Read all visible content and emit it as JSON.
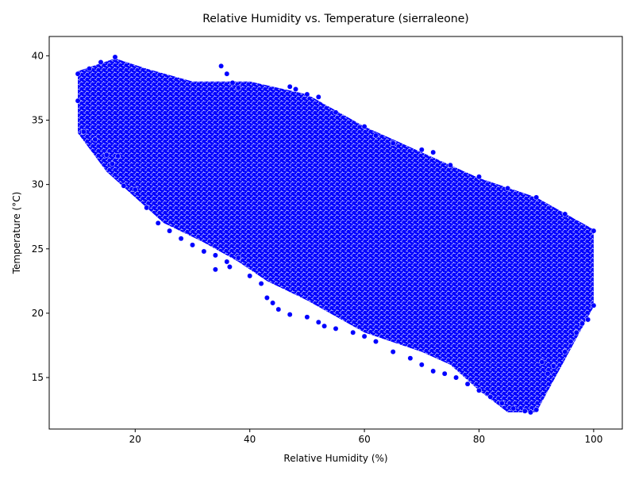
{
  "chart_data": {
    "type": "scatter",
    "title": "Relative Humidity vs. Temperature (sierraleone)",
    "xlabel": "Relative Humidity (%)",
    "ylabel": "Temperature (°C)",
    "xlim": [
      5,
      105
    ],
    "ylim": [
      11,
      41.5
    ],
    "xticks": [
      20,
      40,
      60,
      80,
      100
    ],
    "yticks": [
      15,
      20,
      25,
      30,
      35,
      40
    ],
    "grid": false,
    "legend": "none",
    "marker_color": "#0000ff",
    "marker_edge": "#ffffff",
    "cloud_outline": [
      [
        10,
        38.8
      ],
      [
        16.5,
        39.8
      ],
      [
        22,
        39
      ],
      [
        30,
        38
      ],
      [
        40,
        38
      ],
      [
        50,
        37
      ],
      [
        60,
        34.5
      ],
      [
        70,
        32.5
      ],
      [
        80,
        30.5
      ],
      [
        90,
        29
      ],
      [
        100,
        26.5
      ],
      [
        100,
        20.5
      ],
      [
        90,
        12.3
      ],
      [
        85,
        12.3
      ],
      [
        80,
        14
      ],
      [
        75,
        16
      ],
      [
        70,
        17
      ],
      [
        60,
        18.5
      ],
      [
        50,
        21
      ],
      [
        43,
        22.5
      ],
      [
        38,
        24
      ],
      [
        32,
        25.5
      ],
      [
        25,
        27
      ],
      [
        20,
        29
      ],
      [
        15,
        31
      ],
      [
        10,
        34
      ]
    ],
    "points": [
      [
        40,
        22.9
      ],
      [
        42,
        22.3
      ],
      [
        43,
        21.2
      ],
      [
        44,
        20.8
      ],
      [
        45,
        20.3
      ],
      [
        47,
        19.9
      ],
      [
        50,
        19.7
      ],
      [
        52,
        19.3
      ],
      [
        53,
        19.0
      ],
      [
        55,
        18.8
      ],
      [
        58,
        18.5
      ],
      [
        60,
        18.2
      ],
      [
        62,
        17.8
      ],
      [
        65,
        17.0
      ],
      [
        68,
        16.5
      ],
      [
        70,
        16.0
      ],
      [
        72,
        15.5
      ],
      [
        74,
        15.3
      ],
      [
        76,
        15.0
      ],
      [
        78,
        14.5
      ],
      [
        80,
        14.0
      ],
      [
        82,
        13.5
      ],
      [
        84,
        13.0
      ],
      [
        86,
        12.6
      ],
      [
        88,
        12.4
      ],
      [
        90,
        12.5
      ],
      [
        89,
        12.3
      ],
      [
        38,
        24.3
      ],
      [
        36,
        24.0
      ],
      [
        34,
        24.5
      ],
      [
        32,
        24.8
      ],
      [
        30,
        25.3
      ],
      [
        28,
        25.8
      ],
      [
        26,
        26.4
      ],
      [
        24,
        27.0
      ],
      [
        22,
        28.2
      ],
      [
        20,
        29.6
      ],
      [
        18,
        29.9
      ],
      [
        16,
        31.6
      ],
      [
        15,
        32.3
      ],
      [
        13,
        33.5
      ],
      [
        11,
        34.1
      ],
      [
        10,
        36.5
      ],
      [
        10,
        38.6
      ],
      [
        12,
        39.0
      ],
      [
        14,
        39.5
      ],
      [
        16.5,
        39.9
      ],
      [
        17,
        32.2
      ],
      [
        34,
        23.4
      ],
      [
        36.5,
        23.6
      ],
      [
        35,
        39.2
      ],
      [
        36,
        38.6
      ],
      [
        37,
        37.9
      ],
      [
        38,
        37.5
      ],
      [
        47,
        37.6
      ],
      [
        48,
        37.4
      ],
      [
        50,
        37.0
      ],
      [
        52,
        36.8
      ],
      [
        55,
        35.6
      ],
      [
        60,
        34.5
      ],
      [
        62,
        33.8
      ],
      [
        65,
        33.2
      ],
      [
        70,
        32.7
      ],
      [
        72,
        32.5
      ],
      [
        75,
        31.5
      ],
      [
        80,
        30.6
      ],
      [
        85,
        29.7
      ],
      [
        90,
        29.0
      ],
      [
        95,
        27.7
      ],
      [
        100,
        26.4
      ],
      [
        100,
        20.6
      ],
      [
        99,
        19.5
      ],
      [
        98,
        19.2
      ],
      [
        97,
        18.5
      ],
      [
        96,
        17.8
      ],
      [
        95,
        17.0
      ],
      [
        93,
        15.9
      ],
      [
        92,
        15.3
      ],
      [
        91,
        16.2
      ]
    ]
  }
}
